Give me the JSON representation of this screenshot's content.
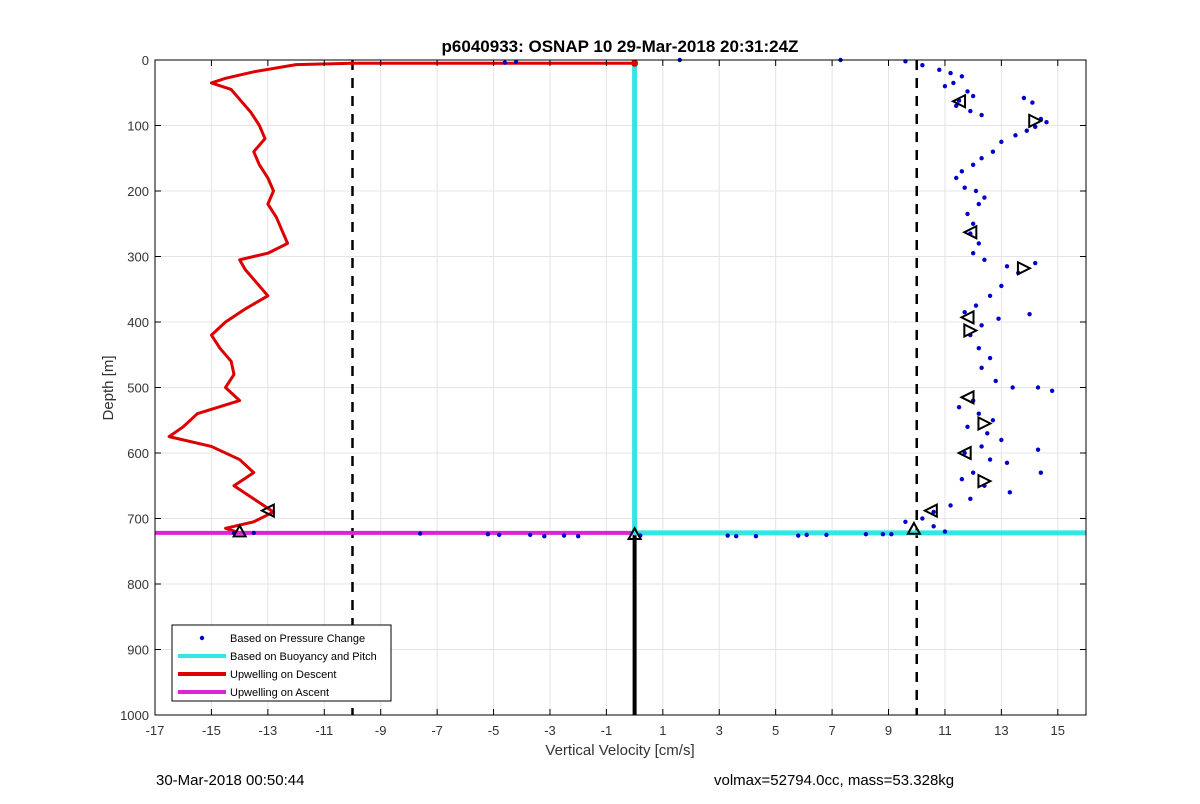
{
  "chart_data": {
    "type": "scatter",
    "title": "p6040933: OSNAP 10 29-Mar-2018 20:31:24Z",
    "xlabel": "Vertical Velocity [cm/s]",
    "ylabel": "Depth [m]",
    "xlim": [
      -17,
      16
    ],
    "ylim": [
      0,
      1000
    ],
    "y_reversed": true,
    "grid": true,
    "x_ticks": [
      -17,
      -15,
      -13,
      -11,
      -9,
      -7,
      -5,
      -3,
      -1,
      1,
      3,
      5,
      7,
      9,
      11,
      13,
      15
    ],
    "y_ticks": [
      0,
      100,
      200,
      300,
      400,
      500,
      600,
      700,
      800,
      900,
      1000
    ],
    "legend_position": "bottom-left",
    "legend": [
      {
        "label": "Based on Pressure Change",
        "color": "#0000cc",
        "style": "dot"
      },
      {
        "label": "Based on Buoyancy and Pitch",
        "color": "#33e6e6",
        "style": "line"
      },
      {
        "label": "Upwelling on Descent",
        "color": "#dd0000",
        "style": "line"
      },
      {
        "label": "Upwelling on Ascent",
        "color": "#dd22dd",
        "style": "line"
      }
    ],
    "series": [
      {
        "name": "Upwelling on Descent",
        "color": "#dd0000",
        "points": [
          [
            0,
            5
          ],
          [
            -5,
            5
          ],
          [
            -10,
            5
          ],
          [
            -12,
            7
          ],
          [
            -13.5,
            18
          ],
          [
            -14.5,
            28
          ],
          [
            -15,
            35
          ],
          [
            -14.3,
            45
          ],
          [
            -14.0,
            60
          ],
          [
            -13.6,
            80
          ],
          [
            -13.3,
            100
          ],
          [
            -13.1,
            120
          ],
          [
            -13.5,
            140
          ],
          [
            -13.3,
            160
          ],
          [
            -13.0,
            180
          ],
          [
            -12.8,
            200
          ],
          [
            -13.0,
            220
          ],
          [
            -12.7,
            240
          ],
          [
            -12.5,
            260
          ],
          [
            -12.3,
            280
          ],
          [
            -13.0,
            295
          ],
          [
            -14.0,
            305
          ],
          [
            -13.8,
            320
          ],
          [
            -13.4,
            340
          ],
          [
            -13.0,
            360
          ],
          [
            -13.8,
            380
          ],
          [
            -14.5,
            400
          ],
          [
            -15.0,
            420
          ],
          [
            -14.7,
            440
          ],
          [
            -14.3,
            460
          ],
          [
            -14.2,
            480
          ],
          [
            -14.5,
            500
          ],
          [
            -14.0,
            520
          ],
          [
            -15.5,
            540
          ],
          [
            -16.0,
            560
          ],
          [
            -16.5,
            575
          ],
          [
            -15.0,
            590
          ],
          [
            -14.0,
            610
          ],
          [
            -13.5,
            630
          ],
          [
            -14.2,
            650
          ],
          [
            -13.5,
            670
          ],
          [
            -12.8,
            690
          ],
          [
            -13.5,
            705
          ],
          [
            -14.5,
            715
          ],
          [
            -14.0,
            722
          ]
        ]
      },
      {
        "name": "Upwelling on Ascent",
        "color": "#dd22dd",
        "points": [
          [
            -17,
            722
          ],
          [
            0,
            722
          ]
        ]
      },
      {
        "name": "Based on Buoyancy and Pitch",
        "color": "#33e6e6",
        "points": [
          [
            0,
            5
          ],
          [
            0,
            722
          ],
          [
            16,
            722
          ]
        ]
      },
      {
        "name": "Based on Pressure Change",
        "color": "#0000cc",
        "points": [
          [
            1.6,
            0
          ],
          [
            7.3,
            0
          ],
          [
            9.6,
            2
          ],
          [
            10.2,
            8
          ],
          [
            10.8,
            15
          ],
          [
            11.2,
            20
          ],
          [
            11.6,
            25
          ],
          [
            11.3,
            35
          ],
          [
            11.0,
            40
          ],
          [
            11.8,
            48
          ],
          [
            12.0,
            55
          ],
          [
            11.5,
            62
          ],
          [
            11.4,
            70
          ],
          [
            11.9,
            78
          ],
          [
            12.3,
            84
          ],
          [
            13.8,
            58
          ],
          [
            14.1,
            65
          ],
          [
            14.4,
            90
          ],
          [
            14.6,
            95
          ],
          [
            14.2,
            102
          ],
          [
            13.9,
            108
          ],
          [
            13.5,
            115
          ],
          [
            13.0,
            125
          ],
          [
            12.7,
            140
          ],
          [
            12.3,
            150
          ],
          [
            12.0,
            160
          ],
          [
            11.6,
            170
          ],
          [
            11.4,
            180
          ],
          [
            11.7,
            195
          ],
          [
            12.1,
            200
          ],
          [
            12.4,
            210
          ],
          [
            12.2,
            220
          ],
          [
            11.8,
            235
          ],
          [
            12.0,
            250
          ],
          [
            11.9,
            265
          ],
          [
            12.2,
            280
          ],
          [
            12.0,
            295
          ],
          [
            12.4,
            305
          ],
          [
            13.2,
            315
          ],
          [
            14.2,
            310
          ],
          [
            13.6,
            325
          ],
          [
            13.0,
            345
          ],
          [
            12.6,
            360
          ],
          [
            12.1,
            375
          ],
          [
            11.7,
            385
          ],
          [
            12.9,
            395
          ],
          [
            14.0,
            388
          ],
          [
            12.3,
            405
          ],
          [
            11.9,
            420
          ],
          [
            12.2,
            440
          ],
          [
            12.6,
            455
          ],
          [
            12.3,
            470
          ],
          [
            12.8,
            490
          ],
          [
            13.4,
            500
          ],
          [
            14.3,
            500
          ],
          [
            14.8,
            505
          ],
          [
            12.0,
            520
          ],
          [
            11.5,
            530
          ],
          [
            12.2,
            540
          ],
          [
            12.7,
            550
          ],
          [
            11.8,
            560
          ],
          [
            12.5,
            570
          ],
          [
            13.0,
            580
          ],
          [
            12.3,
            590
          ],
          [
            11.7,
            600
          ],
          [
            12.6,
            610
          ],
          [
            13.2,
            615
          ],
          [
            14.3,
            595
          ],
          [
            14.4,
            630
          ],
          [
            12.0,
            630
          ],
          [
            11.6,
            640
          ],
          [
            12.4,
            650
          ],
          [
            13.3,
            660
          ],
          [
            11.9,
            670
          ],
          [
            11.2,
            680
          ],
          [
            10.6,
            690
          ],
          [
            10.2,
            700
          ],
          [
            9.6,
            705
          ],
          [
            10.6,
            712
          ],
          [
            11.0,
            720
          ],
          [
            9.1,
            724
          ],
          [
            8.8,
            724
          ],
          [
            8.2,
            724
          ],
          [
            6.8,
            725
          ],
          [
            6.1,
            725
          ],
          [
            5.8,
            726
          ],
          [
            4.3,
            727
          ],
          [
            3.6,
            727
          ],
          [
            3.3,
            726
          ],
          [
            0.2,
            726
          ],
          [
            -2.0,
            727
          ],
          [
            -2.5,
            726
          ],
          [
            -3.2,
            727
          ],
          [
            -3.7,
            725
          ],
          [
            -4.8,
            725
          ],
          [
            -5.2,
            724
          ],
          [
            -7.6,
            723
          ],
          [
            -4.2,
            3
          ],
          [
            -4.6,
            4
          ],
          [
            -14.2,
            722
          ],
          [
            -13.5,
            722
          ]
        ]
      }
    ],
    "reference_lines": [
      {
        "type": "vertical",
        "x": -10,
        "style": "dashed",
        "color": "#000000"
      },
      {
        "type": "vertical",
        "x": 10,
        "style": "dashed",
        "color": "#000000"
      },
      {
        "type": "vertical-segment",
        "x": 0,
        "y_from": 722,
        "y_to": 1000,
        "style": "solid",
        "color": "#000000"
      }
    ],
    "markers": [
      {
        "x": 11.5,
        "y": 63,
        "shape": "triangle-left"
      },
      {
        "x": 14.2,
        "y": 93,
        "shape": "triangle-right"
      },
      {
        "x": 11.9,
        "y": 263,
        "shape": "triangle-left"
      },
      {
        "x": 13.8,
        "y": 318,
        "shape": "triangle-right"
      },
      {
        "x": 11.8,
        "y": 393,
        "shape": "triangle-left"
      },
      {
        "x": 11.9,
        "y": 413,
        "shape": "triangle-right"
      },
      {
        "x": 11.8,
        "y": 515,
        "shape": "triangle-left"
      },
      {
        "x": 12.4,
        "y": 555,
        "shape": "triangle-right"
      },
      {
        "x": 11.7,
        "y": 600,
        "shape": "triangle-left"
      },
      {
        "x": 12.4,
        "y": 643,
        "shape": "triangle-right"
      },
      {
        "x": 10.5,
        "y": 688,
        "shape": "triangle-left"
      },
      {
        "x": 9.9,
        "y": 716,
        "shape": "triangle-up"
      },
      {
        "x": -13.0,
        "y": 688,
        "shape": "triangle-left"
      },
      {
        "x": -14.0,
        "y": 720,
        "shape": "triangle-up"
      },
      {
        "x": 0.0,
        "y": 724,
        "shape": "triangle-up"
      },
      {
        "x": 0.0,
        "y": 5,
        "shape": "dot-red"
      }
    ]
  },
  "footer": {
    "timestamp": "30-Mar-2018 00:50:44",
    "volmax_mass": "volmax=52794.0cc, mass=53.328kg"
  }
}
